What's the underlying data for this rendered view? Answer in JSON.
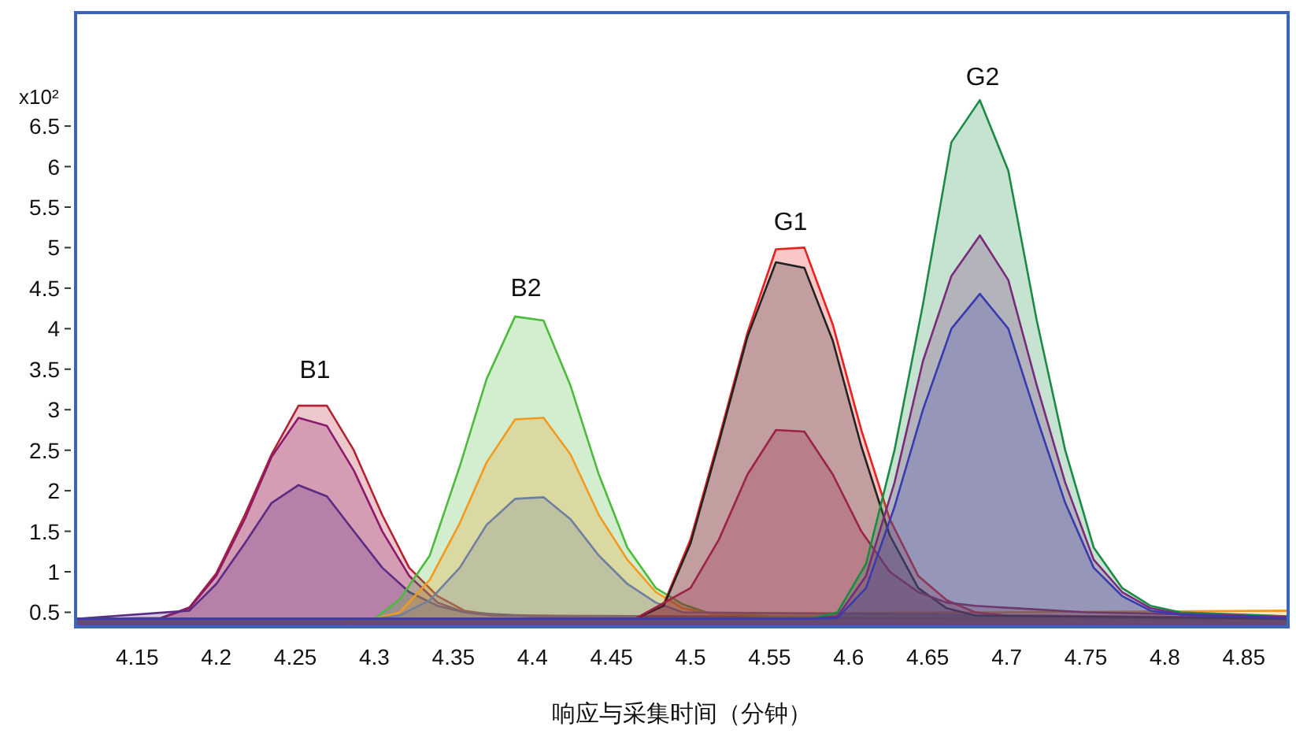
{
  "chart_data": {
    "type": "area",
    "xlabel": "响应与采集时间（分钟）",
    "ylabel": "x10²",
    "xlim": [
      4.111,
      4.878
    ],
    "ylim": [
      0.32,
      7.9
    ],
    "xticks": [
      4.15,
      4.2,
      4.25,
      4.3,
      4.35,
      4.4,
      4.45,
      4.5,
      4.55,
      4.6,
      4.65,
      4.7,
      4.75,
      4.8,
      4.85
    ],
    "yticks": [
      0.5,
      1,
      1.5,
      2,
      2.5,
      3,
      3.5,
      4,
      4.5,
      5,
      5.5,
      6,
      6.5
    ],
    "annotations": [
      "B1",
      "B2",
      "G1",
      "G2"
    ],
    "series": [
      {
        "color": "#b22234",
        "x": [
          4.111,
          4.165,
          4.183,
          4.2,
          4.218,
          4.235,
          4.252,
          4.27,
          4.287,
          4.305,
          4.322,
          4.34,
          4.357,
          4.375,
          4.45,
          4.878
        ],
        "values": [
          0.42,
          0.43,
          0.56,
          0.98,
          1.7,
          2.45,
          3.05,
          3.05,
          2.5,
          1.7,
          1.05,
          0.7,
          0.52,
          0.47,
          0.44,
          0.42
        ]
      },
      {
        "color": "#8b1a6b",
        "x": [
          4.111,
          4.165,
          4.183,
          4.2,
          4.218,
          4.235,
          4.252,
          4.27,
          4.287,
          4.305,
          4.322,
          4.34,
          4.357,
          4.375,
          4.878
        ],
        "values": [
          0.42,
          0.43,
          0.55,
          0.95,
          1.65,
          2.42,
          2.9,
          2.8,
          2.25,
          1.5,
          0.95,
          0.62,
          0.5,
          0.46,
          0.42
        ]
      },
      {
        "color": "#5b2c83",
        "x": [
          4.111,
          4.183,
          4.2,
          4.218,
          4.235,
          4.252,
          4.27,
          4.287,
          4.305,
          4.322,
          4.34,
          4.357,
          4.4,
          4.878
        ],
        "values": [
          0.42,
          0.52,
          0.85,
          1.35,
          1.85,
          2.07,
          1.93,
          1.5,
          1.05,
          0.75,
          0.58,
          0.5,
          0.45,
          0.42
        ]
      },
      {
        "color": "#4cbb3c",
        "x": [
          4.111,
          4.3,
          4.316,
          4.335,
          4.354,
          4.371,
          4.389,
          4.407,
          4.424,
          4.442,
          4.46,
          4.478,
          4.495,
          4.513,
          4.55,
          4.878
        ],
        "values": [
          0.42,
          0.42,
          0.66,
          1.2,
          2.3,
          3.38,
          4.15,
          4.1,
          3.3,
          2.2,
          1.3,
          0.8,
          0.6,
          0.48,
          0.45,
          0.44
        ]
      },
      {
        "color": "#f39a1e",
        "x": [
          4.285,
          4.3,
          4.316,
          4.335,
          4.354,
          4.371,
          4.389,
          4.407,
          4.424,
          4.442,
          4.46,
          4.478,
          4.495,
          4.513,
          4.878
        ],
        "values": [
          0.42,
          0.42,
          0.5,
          0.9,
          1.6,
          2.35,
          2.88,
          2.9,
          2.45,
          1.7,
          1.15,
          0.75,
          0.55,
          0.48,
          0.52
        ]
      },
      {
        "color": "#6f7fa0",
        "x": [
          4.111,
          4.3,
          4.316,
          4.335,
          4.354,
          4.371,
          4.389,
          4.407,
          4.424,
          4.442,
          4.46,
          4.478,
          4.495,
          4.878
        ],
        "values": [
          0.42,
          0.42,
          0.46,
          0.65,
          1.05,
          1.58,
          1.9,
          1.92,
          1.65,
          1.2,
          0.85,
          0.62,
          0.5,
          0.43
        ]
      },
      {
        "color": "#e8201e",
        "x": [
          4.111,
          4.465,
          4.483,
          4.5,
          4.518,
          4.536,
          4.554,
          4.572,
          4.59,
          4.608,
          4.626,
          4.644,
          4.662,
          4.68,
          4.7,
          4.878
        ],
        "values": [
          0.42,
          0.42,
          0.6,
          1.4,
          2.65,
          3.95,
          4.98,
          5.0,
          4.05,
          2.75,
          1.65,
          0.95,
          0.65,
          0.5,
          0.46,
          0.43
        ]
      },
      {
        "color": "#222222",
        "x": [
          4.111,
          4.465,
          4.483,
          4.5,
          4.518,
          4.536,
          4.554,
          4.572,
          4.59,
          4.608,
          4.626,
          4.644,
          4.662,
          4.68,
          4.878
        ],
        "values": [
          0.42,
          0.42,
          0.58,
          1.35,
          2.6,
          3.9,
          4.82,
          4.75,
          3.85,
          2.55,
          1.45,
          0.8,
          0.55,
          0.46,
          0.42
        ]
      },
      {
        "color": "#9b2347",
        "x": [
          4.111,
          4.465,
          4.5,
          4.518,
          4.536,
          4.554,
          4.572,
          4.59,
          4.608,
          4.626,
          4.644,
          4.662,
          4.68,
          4.75,
          4.878
        ],
        "values": [
          0.42,
          0.42,
          0.8,
          1.4,
          2.2,
          2.75,
          2.73,
          2.2,
          1.5,
          1.0,
          0.75,
          0.62,
          0.58,
          0.5,
          0.45
        ]
      },
      {
        "color": "#1a8a45",
        "x": [
          4.111,
          4.575,
          4.593,
          4.611,
          4.629,
          4.647,
          4.665,
          4.683,
          4.701,
          4.719,
          4.737,
          4.755,
          4.773,
          4.791,
          4.81,
          4.878
        ],
        "values": [
          0.42,
          0.42,
          0.5,
          1.1,
          2.5,
          4.3,
          6.3,
          6.82,
          5.95,
          4.1,
          2.5,
          1.3,
          0.8,
          0.58,
          0.5,
          0.45
        ]
      },
      {
        "color": "#7a2a7a",
        "x": [
          4.111,
          4.575,
          4.593,
          4.611,
          4.629,
          4.647,
          4.665,
          4.683,
          4.701,
          4.719,
          4.737,
          4.755,
          4.773,
          4.791,
          4.81,
          4.878
        ],
        "values": [
          0.42,
          0.42,
          0.45,
          0.95,
          2.1,
          3.6,
          4.65,
          5.15,
          4.6,
          3.3,
          2.1,
          1.15,
          0.75,
          0.55,
          0.48,
          0.44
        ]
      },
      {
        "color": "#3a3ab0",
        "x": [
          4.111,
          4.575,
          4.593,
          4.611,
          4.629,
          4.647,
          4.665,
          4.683,
          4.701,
          4.719,
          4.737,
          4.755,
          4.773,
          4.791,
          4.81,
          4.878
        ],
        "values": [
          0.42,
          0.42,
          0.43,
          0.8,
          1.8,
          3.0,
          4.0,
          4.43,
          4.0,
          2.9,
          1.85,
          1.05,
          0.7,
          0.52,
          0.47,
          0.43
        ]
      }
    ]
  }
}
